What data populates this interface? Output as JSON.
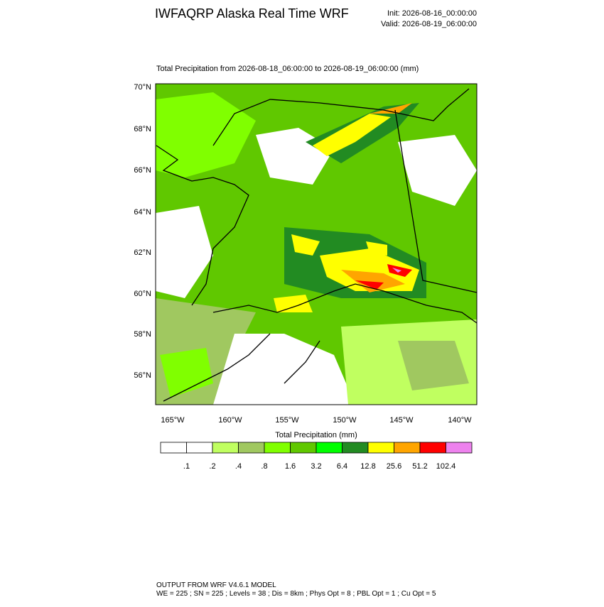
{
  "header": {
    "title": "IWFAQRP Alaska Real Time WRF",
    "init": "Init: 2026-08-16_00:00:00",
    "valid": "Valid: 2026-08-19_06:00:00"
  },
  "map": {
    "subtitle": "Total Precipitation from 2026-08-18_06:00:00 to 2026-08-19_06:00:00   (mm)",
    "lat_labels": [
      "70°N",
      "68°N",
      "66°N",
      "64°N",
      "62°N",
      "60°N",
      "58°N",
      "56°N"
    ],
    "lon_labels": [
      "165°W",
      "160°W",
      "155°W",
      "150°W",
      "145°W",
      "140°W"
    ]
  },
  "colorbar": {
    "title": "Total Precipitation  (mm)",
    "colors": [
      "#ffffff",
      "#ffffff",
      "#c0ff60",
      "#a0c860",
      "#80ff00",
      "#60c800",
      "#00ff00",
      "#228b22",
      "#ffff00",
      "#ffa500",
      "#ff0000",
      "#ee82ee"
    ],
    "levels": [
      {
        "value": 0.1,
        "label": ".1"
      },
      {
        "value": 0.2,
        "label": ".2"
      },
      {
        "value": 0.4,
        "label": ".4"
      },
      {
        "value": 0.8,
        "label": ".8"
      },
      1.6,
      3.2,
      6.4,
      12.8,
      25.6,
      51.2,
      102.4
    ]
  },
  "footer": {
    "line1": "OUTPUT FROM WRF V4.6.1 MODEL",
    "line2": "WE = 225 ; SN = 225 ; Levels = 38 ; Dis = 8km ; Phys Opt = 8 ; PBL Opt = 1 ; Cu Opt = 5"
  }
}
